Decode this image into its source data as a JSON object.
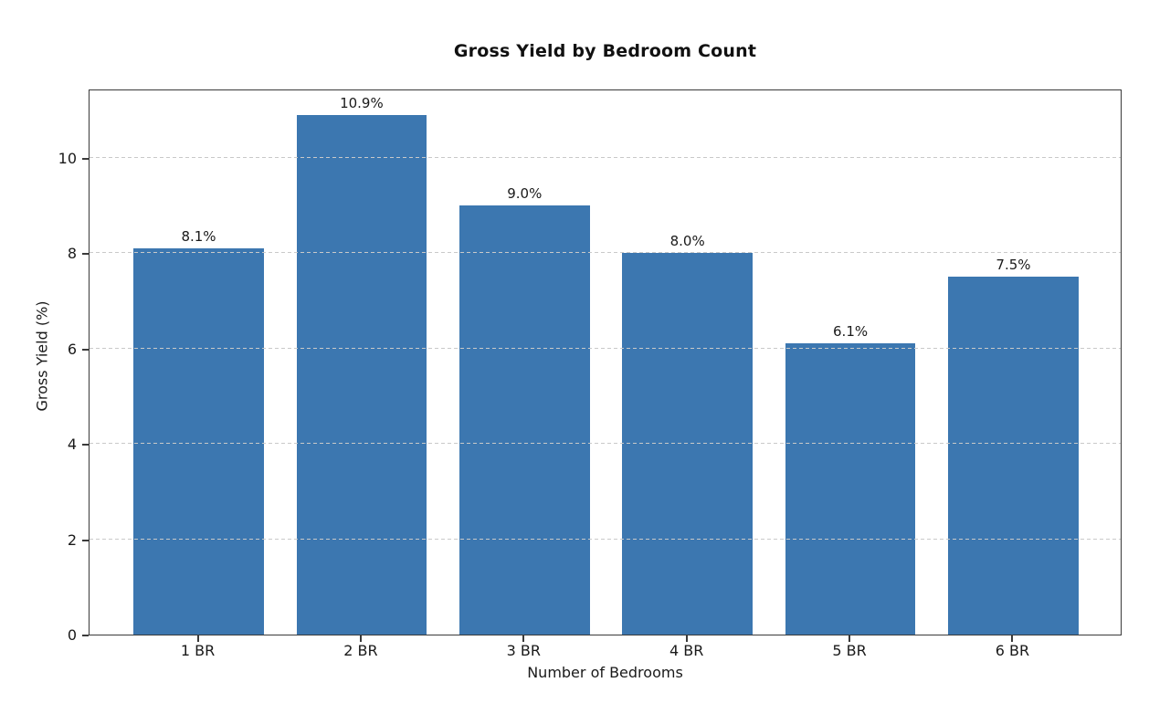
{
  "chart_data": {
    "type": "bar",
    "title": "Gross Yield by Bedroom Count",
    "xlabel": "Number of Bedrooms",
    "ylabel": "Gross Yield (%)",
    "categories": [
      "1 BR",
      "2 BR",
      "3 BR",
      "4 BR",
      "5 BR",
      "6 BR"
    ],
    "values": [
      8.1,
      10.9,
      9.0,
      8.0,
      6.1,
      7.5
    ],
    "bar_labels": [
      "8.1%",
      "10.9%",
      "9.0%",
      "8.0%",
      "6.1%",
      "7.5%"
    ],
    "yticks": [
      0,
      2,
      4,
      6,
      8,
      10
    ],
    "ylim": [
      0,
      11.45
    ],
    "xlim": [
      -0.67,
      5.67
    ],
    "bar_width": 0.8,
    "grid": "horizontal dashed, drawn over bars",
    "legend": "none",
    "colors": {
      "bar": "#3c77b0",
      "grid": "#c9c9c9",
      "spine": "#3a3a3a",
      "text": "#1a1a1a",
      "background": "#ffffff"
    }
  }
}
